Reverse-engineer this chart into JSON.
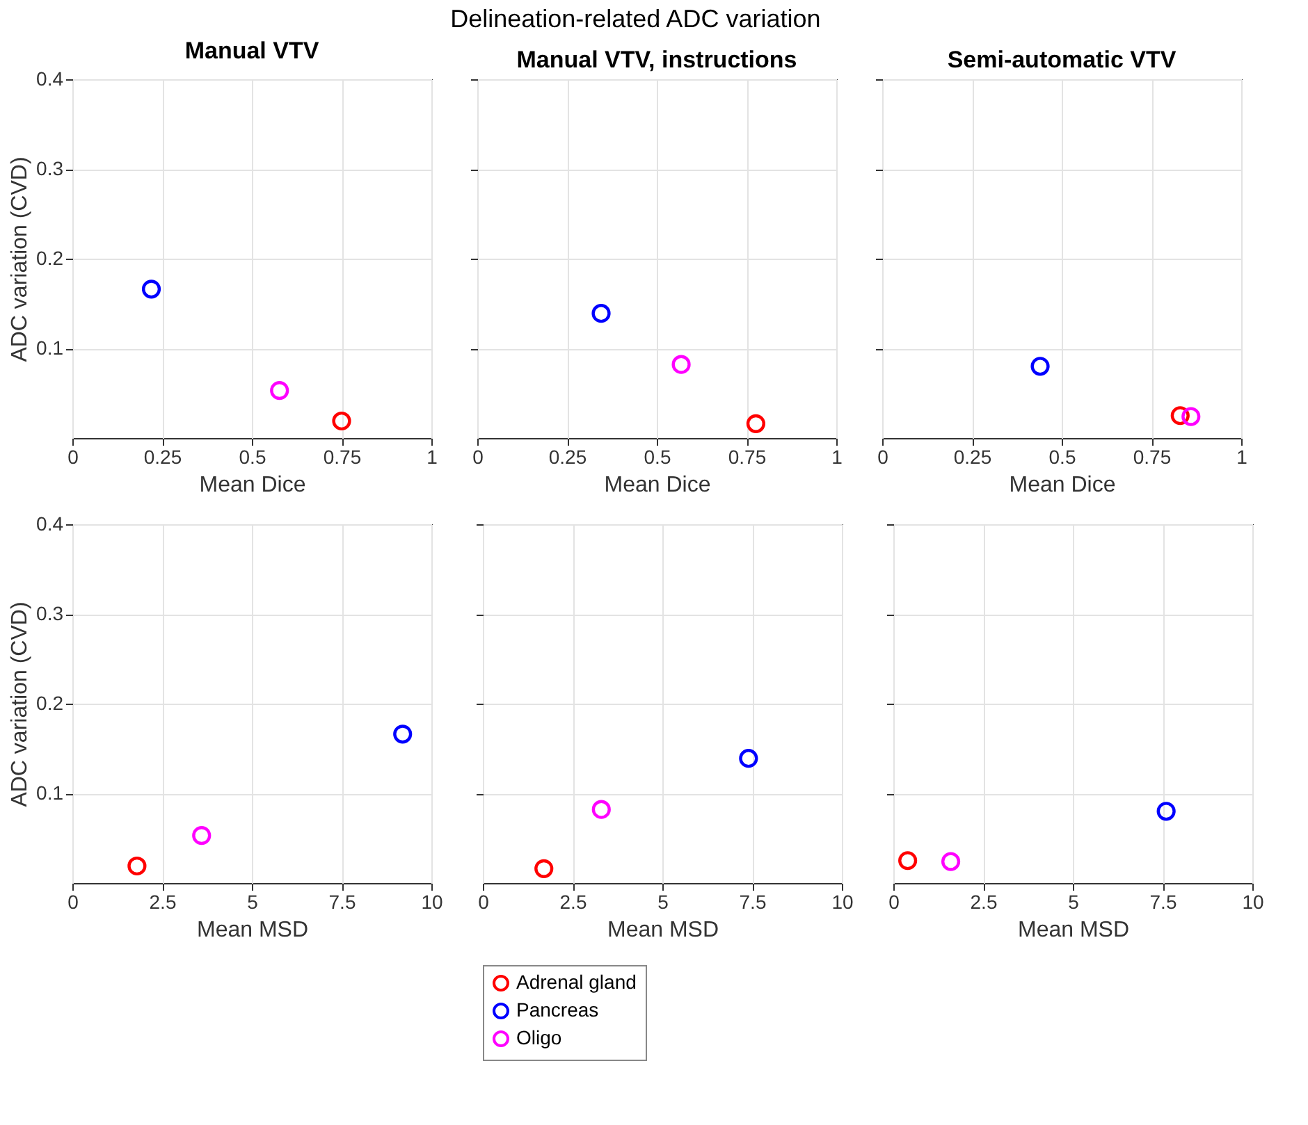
{
  "chart_data": [
    {
      "type": "scatter",
      "title": "Manual VTV",
      "xlabel": "Mean Dice",
      "ylabel": "ADC variation (CVD)",
      "xlim": [
        0,
        1
      ],
      "xticks": [
        0,
        0.25,
        0.5,
        0.75,
        1
      ],
      "ylim": [
        0,
        0.4
      ],
      "yticks": [
        0.1,
        0.2,
        0.3,
        0.4
      ],
      "grid": true,
      "marker": "circle",
      "annotations": [
        "Delineation-related ADC variation"
      ],
      "series": [
        {
          "color": "#ff0000",
          "x": [
            0.75
          ],
          "values": [
            0.019
          ]
        },
        {
          "color": "#0000ff",
          "x": [
            0.22
          ],
          "values": [
            0.166
          ]
        },
        {
          "color": "#ff00ff",
          "x": [
            0.577
          ],
          "values": [
            0.053
          ]
        }
      ]
    },
    {
      "type": "scatter",
      "title": "Manual VTV, instructions",
      "xlabel": "Mean Dice",
      "xlim": [
        0,
        1
      ],
      "xticks": [
        0,
        0.25,
        0.5,
        0.75,
        1
      ],
      "ylim": [
        0,
        0.4
      ],
      "yticks": [
        0.1,
        0.2,
        0.3,
        0.4
      ],
      "tick_labels": "x",
      "grid": true,
      "marker": "circle",
      "series": [
        {
          "color": "#ff0000",
          "x": [
            0.776
          ],
          "values": [
            0.016
          ]
        },
        {
          "color": "#0000ff",
          "x": [
            0.345
          ],
          "values": [
            0.139
          ]
        },
        {
          "color": "#ff00ff",
          "x": [
            0.568
          ],
          "values": [
            0.082
          ]
        }
      ]
    },
    {
      "type": "scatter",
      "title": "Semi-automatic VTV",
      "xlabel": "Mean Dice",
      "xlim": [
        0,
        1
      ],
      "xticks": [
        0,
        0.25,
        0.5,
        0.75,
        1
      ],
      "ylim": [
        0,
        0.4
      ],
      "yticks": [
        0.1,
        0.2,
        0.3,
        0.4
      ],
      "tick_labels": "x",
      "grid": true,
      "marker": "circle",
      "series": [
        {
          "color": "#ff0000",
          "x": [
            0.83
          ],
          "values": [
            0.025
          ]
        },
        {
          "color": "#0000ff",
          "x": [
            0.44
          ],
          "values": [
            0.08
          ]
        },
        {
          "color": "#ff00ff",
          "x": [
            0.86
          ],
          "values": [
            0.024
          ]
        }
      ]
    },
    {
      "type": "scatter",
      "xlabel": "Mean MSD",
      "ylabel": "ADC variation (CVD)",
      "xlim": [
        0,
        10
      ],
      "xticks": [
        0,
        2.5,
        5,
        7.5,
        10
      ],
      "ylim": [
        0,
        0.4
      ],
      "yticks": [
        0.1,
        0.2,
        0.3,
        0.4
      ],
      "grid": true,
      "marker": "circle",
      "series": [
        {
          "color": "#ff0000",
          "x": [
            1.8
          ],
          "values": [
            0.019
          ]
        },
        {
          "color": "#0000ff",
          "x": [
            9.2
          ],
          "values": [
            0.166
          ]
        },
        {
          "color": "#ff00ff",
          "x": [
            3.6
          ],
          "values": [
            0.053
          ]
        }
      ]
    },
    {
      "type": "scatter",
      "xlabel": "Mean MSD",
      "xlim": [
        0,
        10
      ],
      "xticks": [
        0,
        2.5,
        5,
        7.5,
        10
      ],
      "ylim": [
        0,
        0.4
      ],
      "yticks": [
        0.1,
        0.2,
        0.3,
        0.4
      ],
      "tick_labels": "x",
      "grid": true,
      "marker": "circle",
      "legend": "bottom",
      "series": [
        {
          "name": "Adrenal gland",
          "color": "#ff0000",
          "x": [
            1.7
          ],
          "values": [
            0.016
          ]
        },
        {
          "name": "Pancreas",
          "color": "#0000ff",
          "x": [
            7.4
          ],
          "values": [
            0.139
          ]
        },
        {
          "name": "Oligo",
          "color": "#ff00ff",
          "x": [
            3.3
          ],
          "values": [
            0.082
          ]
        }
      ]
    },
    {
      "type": "scatter",
      "xlabel": "Mean MSD",
      "xlim": [
        0,
        10
      ],
      "xticks": [
        0,
        2.5,
        5,
        7.5,
        10
      ],
      "ylim": [
        0,
        0.4
      ],
      "yticks": [
        0.1,
        0.2,
        0.3,
        0.4
      ],
      "tick_labels": "x",
      "grid": true,
      "marker": "circle",
      "series": [
        {
          "color": "#ff0000",
          "x": [
            0.4
          ],
          "values": [
            0.025
          ]
        },
        {
          "color": "#0000ff",
          "x": [
            7.6
          ],
          "values": [
            0.08
          ]
        },
        {
          "color": "#ff00ff",
          "x": [
            1.6
          ],
          "values": [
            0.024
          ]
        }
      ]
    }
  ]
}
